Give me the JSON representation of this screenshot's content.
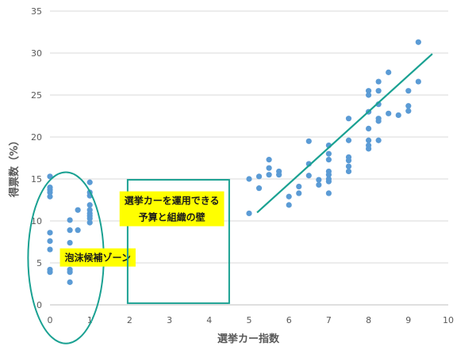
{
  "chart_data": {
    "type": "scatter",
    "xlabel": "選挙カー指数",
    "ylabel": "得票数（%）",
    "xlim": [
      0,
      10
    ],
    "ylim": [
      0,
      35
    ],
    "x_ticks": [
      0,
      1,
      2,
      3,
      4,
      5,
      6,
      7,
      8,
      9,
      10
    ],
    "y_ticks": [
      0,
      5,
      10,
      15,
      20,
      25,
      30,
      35
    ],
    "grid": "horizontal",
    "legend": "none",
    "point_color": "#5b9bd5",
    "series": [
      {
        "points": [
          [
            0,
            15.3
          ],
          [
            0,
            14.0
          ],
          [
            0,
            13.7
          ],
          [
            0,
            13.4
          ],
          [
            0,
            12.9
          ],
          [
            0,
            8.6
          ],
          [
            0,
            7.6
          ],
          [
            0,
            6.6
          ],
          [
            0,
            4.2
          ],
          [
            0,
            3.9
          ],
          [
            0.5,
            10.1
          ],
          [
            0.5,
            8.9
          ],
          [
            0.5,
            7.4
          ],
          [
            0.5,
            4.2
          ],
          [
            0.5,
            3.9
          ],
          [
            0.5,
            2.7
          ],
          [
            0.7,
            11.3
          ],
          [
            0.7,
            8.9
          ],
          [
            1,
            14.6
          ],
          [
            1,
            13.4
          ],
          [
            1,
            13.0
          ],
          [
            1,
            11.9
          ],
          [
            1,
            11.3
          ],
          [
            1,
            10.9
          ],
          [
            1,
            10.6
          ],
          [
            1,
            10.3
          ],
          [
            1,
            9.8
          ],
          [
            5,
            15.0
          ],
          [
            5,
            10.9
          ],
          [
            5.25,
            15.3
          ],
          [
            5.25,
            13.9
          ],
          [
            5.5,
            17.3
          ],
          [
            5.5,
            16.3
          ],
          [
            5.5,
            15.5
          ],
          [
            5.75,
            15.9
          ],
          [
            5.75,
            15.5
          ],
          [
            6,
            12.9
          ],
          [
            6,
            11.9
          ],
          [
            6.25,
            14.1
          ],
          [
            6.25,
            13.3
          ],
          [
            6.5,
            19.5
          ],
          [
            6.5,
            16.8
          ],
          [
            6.5,
            15.4
          ],
          [
            6.75,
            14.9
          ],
          [
            6.75,
            14.3
          ],
          [
            7,
            19.0
          ],
          [
            7,
            18.0
          ],
          [
            7,
            17.3
          ],
          [
            7,
            15.9
          ],
          [
            7,
            15.5
          ],
          [
            7,
            15.0
          ],
          [
            7,
            14.7
          ],
          [
            7,
            13.3
          ],
          [
            7.5,
            22.2
          ],
          [
            7.5,
            19.6
          ],
          [
            7.5,
            17.6
          ],
          [
            7.5,
            17.2
          ],
          [
            7.5,
            16.5
          ],
          [
            7.5,
            15.9
          ],
          [
            8,
            25.5
          ],
          [
            8,
            25.0
          ],
          [
            8,
            23.0
          ],
          [
            8,
            21.0
          ],
          [
            8,
            19.6
          ],
          [
            8,
            19.0
          ],
          [
            8,
            18.6
          ],
          [
            8.25,
            26.6
          ],
          [
            8.25,
            25.5
          ],
          [
            8.25,
            23.9
          ],
          [
            8.25,
            22.2
          ],
          [
            8.25,
            21.9
          ],
          [
            8.25,
            19.6
          ],
          [
            8.5,
            27.7
          ],
          [
            8.5,
            22.8
          ],
          [
            8.75,
            22.6
          ],
          [
            9,
            25.5
          ],
          [
            9,
            23.7
          ],
          [
            9,
            23.1
          ],
          [
            9.25,
            31.3
          ],
          [
            9.25,
            26.6
          ]
        ]
      }
    ],
    "trendline": {
      "color": "#1aa192",
      "from": [
        5.2,
        11.0
      ],
      "to": [
        9.6,
        29.9
      ]
    },
    "annotations": [
      {
        "shape": "circle",
        "color": "#1aa192",
        "center": [
          0.4,
          5.6
        ],
        "radius_x": 0.95,
        "radius_y": 10.2,
        "label_lines": [
          "泡沫候補ゾーン"
        ],
        "label_anchor": [
          1.2,
          5.6
        ],
        "label_bg": "#ffff00"
      },
      {
        "shape": "rect",
        "color": "#1aa192",
        "x_range": [
          1.95,
          4.5
        ],
        "y_range": [
          0.2,
          14.9
        ],
        "label_lines": [
          "選挙カーを運用できる",
          "予算と組織の壁"
        ],
        "label_anchor": [
          3.06,
          11.4
        ],
        "label_bg": "#ffff00"
      }
    ]
  }
}
